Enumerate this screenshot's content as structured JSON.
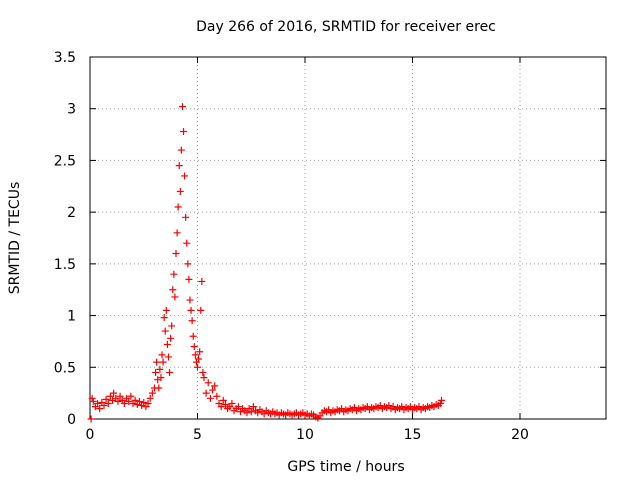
{
  "chart_data": {
    "type": "scatter",
    "title": "Day 266 of 2016, SRMTID for receiver erec",
    "xlabel": "GPS time / hours",
    "ylabel": "SRMTID / TECUs",
    "xlim": [
      0,
      24
    ],
    "ylim": [
      0,
      3.5
    ],
    "x_ticks": [
      0,
      5,
      10,
      15,
      20
    ],
    "x_tick_labels": [
      "0",
      "5",
      "10",
      "15",
      "20"
    ],
    "y_ticks": [
      0,
      0.5,
      1,
      1.5,
      2,
      2.5,
      3,
      3.5
    ],
    "y_tick_labels": [
      "0",
      "0.5",
      "1",
      "1.5",
      "2",
      "2.5",
      "3",
      "3.5"
    ],
    "grid": true,
    "legend": "none",
    "marker": "plus",
    "color": "#ff0000",
    "series": [
      {
        "points": [
          [
            0.05,
            0.0
          ],
          [
            0.1,
            0.2
          ],
          [
            0.15,
            0.17
          ],
          [
            0.25,
            0.12
          ],
          [
            0.35,
            0.15
          ],
          [
            0.45,
            0.1
          ],
          [
            0.55,
            0.16
          ],
          [
            0.65,
            0.13
          ],
          [
            0.75,
            0.19
          ],
          [
            0.85,
            0.15
          ],
          [
            0.95,
            0.22
          ],
          [
            1.05,
            0.18
          ],
          [
            1.1,
            0.25
          ],
          [
            1.2,
            0.2
          ],
          [
            1.3,
            0.17
          ],
          [
            1.4,
            0.22
          ],
          [
            1.5,
            0.18
          ],
          [
            1.6,
            0.15
          ],
          [
            1.7,
            0.2
          ],
          [
            1.8,
            0.17
          ],
          [
            1.9,
            0.22
          ],
          [
            2.0,
            0.15
          ],
          [
            2.1,
            0.18
          ],
          [
            2.2,
            0.14
          ],
          [
            2.3,
            0.17
          ],
          [
            2.4,
            0.13
          ],
          [
            2.5,
            0.16
          ],
          [
            2.6,
            0.12
          ],
          [
            2.7,
            0.15
          ],
          [
            2.8,
            0.2
          ],
          [
            2.9,
            0.25
          ],
          [
            3.0,
            0.3
          ],
          [
            3.05,
            0.45
          ],
          [
            3.1,
            0.55
          ],
          [
            3.15,
            0.38
          ],
          [
            3.2,
            0.3
          ],
          [
            3.25,
            0.48
          ],
          [
            3.3,
            0.4
          ],
          [
            3.35,
            0.62
          ],
          [
            3.4,
            0.55
          ],
          [
            3.45,
            0.98
          ],
          [
            3.5,
            0.85
          ],
          [
            3.55,
            1.05
          ],
          [
            3.6,
            0.72
          ],
          [
            3.65,
            0.6
          ],
          [
            3.7,
            0.45
          ],
          [
            3.75,
            0.78
          ],
          [
            3.8,
            0.9
          ],
          [
            3.85,
            1.25
          ],
          [
            3.9,
            1.4
          ],
          [
            3.95,
            1.18
          ],
          [
            4.0,
            1.6
          ],
          [
            4.05,
            1.8
          ],
          [
            4.1,
            2.05
          ],
          [
            4.15,
            2.45
          ],
          [
            4.2,
            2.2
          ],
          [
            4.25,
            2.6
          ],
          [
            4.3,
            3.02
          ],
          [
            4.35,
            2.78
          ],
          [
            4.4,
            2.35
          ],
          [
            4.45,
            1.95
          ],
          [
            4.5,
            1.7
          ],
          [
            4.55,
            1.5
          ],
          [
            4.6,
            1.35
          ],
          [
            4.65,
            1.15
          ],
          [
            4.7,
            1.05
          ],
          [
            4.75,
            0.95
          ],
          [
            4.8,
            0.8
          ],
          [
            4.85,
            0.7
          ],
          [
            4.9,
            0.62
          ],
          [
            4.95,
            0.55
          ],
          [
            5.0,
            0.5
          ],
          [
            5.05,
            0.58
          ],
          [
            5.1,
            0.65
          ],
          [
            5.15,
            1.05
          ],
          [
            5.2,
            1.33
          ],
          [
            5.25,
            0.45
          ],
          [
            5.3,
            0.4
          ],
          [
            5.4,
            0.25
          ],
          [
            5.5,
            0.35
          ],
          [
            5.6,
            0.2
          ],
          [
            5.7,
            0.28
          ],
          [
            5.8,
            0.32
          ],
          [
            5.9,
            0.22
          ],
          [
            6.0,
            0.15
          ],
          [
            6.1,
            0.12
          ],
          [
            6.2,
            0.18
          ],
          [
            6.3,
            0.14
          ],
          [
            6.4,
            0.1
          ],
          [
            6.5,
            0.12
          ],
          [
            6.6,
            0.15
          ],
          [
            6.7,
            0.08
          ],
          [
            6.8,
            0.1
          ],
          [
            6.9,
            0.12
          ],
          [
            7.0,
            0.07
          ],
          [
            7.1,
            0.1
          ],
          [
            7.2,
            0.08
          ],
          [
            7.3,
            0.06
          ],
          [
            7.4,
            0.1
          ],
          [
            7.5,
            0.07
          ],
          [
            7.6,
            0.12
          ],
          [
            7.7,
            0.08
          ],
          [
            7.8,
            0.06
          ],
          [
            7.9,
            0.09
          ],
          [
            8.0,
            0.07
          ],
          [
            8.1,
            0.05
          ],
          [
            8.2,
            0.08
          ],
          [
            8.3,
            0.06
          ],
          [
            8.4,
            0.05
          ],
          [
            8.5,
            0.07
          ],
          [
            8.6,
            0.05
          ],
          [
            8.7,
            0.06
          ],
          [
            8.8,
            0.04
          ],
          [
            8.9,
            0.06
          ],
          [
            9.0,
            0.05
          ],
          [
            9.1,
            0.04
          ],
          [
            9.2,
            0.06
          ],
          [
            9.3,
            0.05
          ],
          [
            9.4,
            0.04
          ],
          [
            9.5,
            0.05
          ],
          [
            9.6,
            0.06
          ],
          [
            9.7,
            0.04
          ],
          [
            9.8,
            0.05
          ],
          [
            9.9,
            0.06
          ],
          [
            10.0,
            0.04
          ],
          [
            10.1,
            0.05
          ],
          [
            10.2,
            0.03
          ],
          [
            10.3,
            0.05
          ],
          [
            10.4,
            0.04
          ],
          [
            10.5,
            0.02
          ],
          [
            10.6,
            0.01
          ],
          [
            10.7,
            0.03
          ],
          [
            10.8,
            0.06
          ],
          [
            10.9,
            0.08
          ],
          [
            11.0,
            0.07
          ],
          [
            11.1,
            0.09
          ],
          [
            11.2,
            0.06
          ],
          [
            11.3,
            0.08
          ],
          [
            11.4,
            0.07
          ],
          [
            11.5,
            0.09
          ],
          [
            11.6,
            0.08
          ],
          [
            11.7,
            0.1
          ],
          [
            11.8,
            0.07
          ],
          [
            11.9,
            0.09
          ],
          [
            12.0,
            0.08
          ],
          [
            12.1,
            0.1
          ],
          [
            12.2,
            0.09
          ],
          [
            12.3,
            0.11
          ],
          [
            12.4,
            0.08
          ],
          [
            12.5,
            0.1
          ],
          [
            12.6,
            0.09
          ],
          [
            12.7,
            0.11
          ],
          [
            12.8,
            0.1
          ],
          [
            12.9,
            0.12
          ],
          [
            13.0,
            0.09
          ],
          [
            13.1,
            0.11
          ],
          [
            13.2,
            0.1
          ],
          [
            13.3,
            0.12
          ],
          [
            13.4,
            0.11
          ],
          [
            13.5,
            0.13
          ],
          [
            13.6,
            0.1
          ],
          [
            13.7,
            0.12
          ],
          [
            13.8,
            0.11
          ],
          [
            13.9,
            0.13
          ],
          [
            14.0,
            0.1
          ],
          [
            14.1,
            0.12
          ],
          [
            14.2,
            0.09
          ],
          [
            14.3,
            0.11
          ],
          [
            14.4,
            0.1
          ],
          [
            14.5,
            0.12
          ],
          [
            14.6,
            0.09
          ],
          [
            14.7,
            0.11
          ],
          [
            14.8,
            0.1
          ],
          [
            14.9,
            0.12
          ],
          [
            15.0,
            0.09
          ],
          [
            15.1,
            0.11
          ],
          [
            15.2,
            0.1
          ],
          [
            15.3,
            0.12
          ],
          [
            15.4,
            0.09
          ],
          [
            15.5,
            0.11
          ],
          [
            15.6,
            0.1
          ],
          [
            15.7,
            0.12
          ],
          [
            15.8,
            0.11
          ],
          [
            15.9,
            0.13
          ],
          [
            16.0,
            0.12
          ],
          [
            16.1,
            0.14
          ],
          [
            16.2,
            0.13
          ],
          [
            16.3,
            0.15
          ],
          [
            16.35,
            0.18
          ]
        ]
      }
    ]
  }
}
